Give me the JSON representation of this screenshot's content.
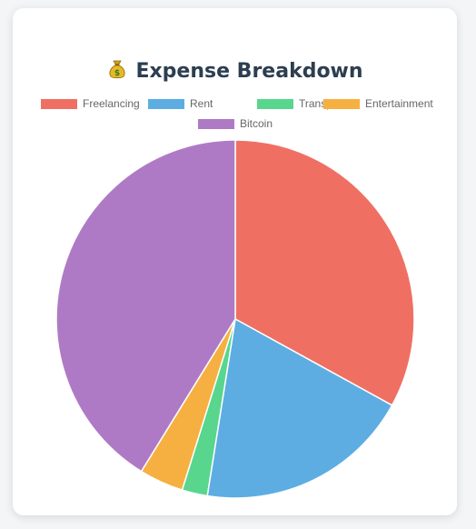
{
  "header": {
    "title_icon": "money-bag-icon",
    "title": "Expense Breakdown"
  },
  "chart_data": {
    "type": "pie",
    "title": "Expense Breakdown",
    "categories": [
      "Freelancing",
      "Rent",
      "Transport",
      "Entertainment",
      "Bitcoin"
    ],
    "values": [
      33.0,
      19.5,
      2.3,
      4.0,
      41.2
    ],
    "colors": [
      "#ef7063",
      "#5dade2",
      "#58d68d",
      "#f5b041",
      "#af7ac5"
    ],
    "legend_position": "top",
    "slice_border": "#ffffff"
  }
}
